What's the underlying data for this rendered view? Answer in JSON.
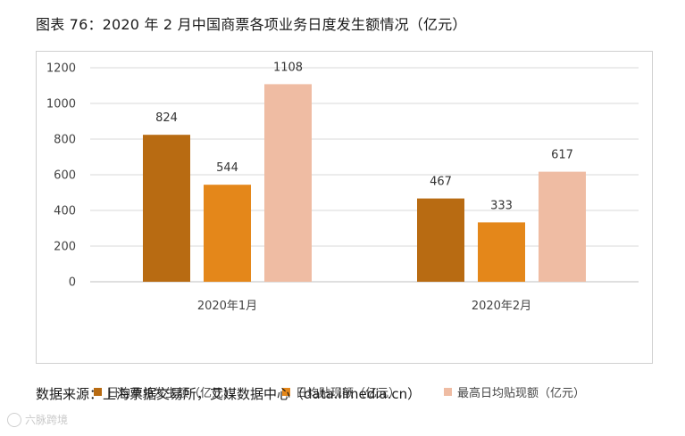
{
  "title": "图表 76：2020 年 2 月中国商票各项业务日度发生额情况（亿元）",
  "source": "数据来源：上海票据交易所，艾媒数据中心（data.iimedia.cn）",
  "watermark": "六脉跨境",
  "chart_data": {
    "type": "bar",
    "title": "",
    "xlabel": "",
    "ylabel": "",
    "categories": [
      "2020年1月",
      "2020年2月"
    ],
    "ylim": [
      0,
      1200
    ],
    "yticks": [
      0,
      200,
      400,
      600,
      800,
      1000,
      1200
    ],
    "ytick_labels": [
      "0",
      "200",
      "400",
      "600",
      "800",
      "1000",
      "1200"
    ],
    "grid": true,
    "legend_position": "bottom",
    "series": [
      {
        "name": "日均承兑发生额（亿元）",
        "values": [
          824,
          467
        ],
        "labels": [
          "824",
          "467"
        ],
        "color": "#b86b12"
      },
      {
        "name": "日均贴现额（亿元）",
        "values": [
          544,
          333
        ],
        "labels": [
          "544",
          "333"
        ],
        "color": "#e4871a"
      },
      {
        "name": "最高日均贴现额（亿元）",
        "values": [
          1108,
          617
        ],
        "labels": [
          "1108",
          "617"
        ],
        "color": "#efbca3"
      }
    ]
  }
}
